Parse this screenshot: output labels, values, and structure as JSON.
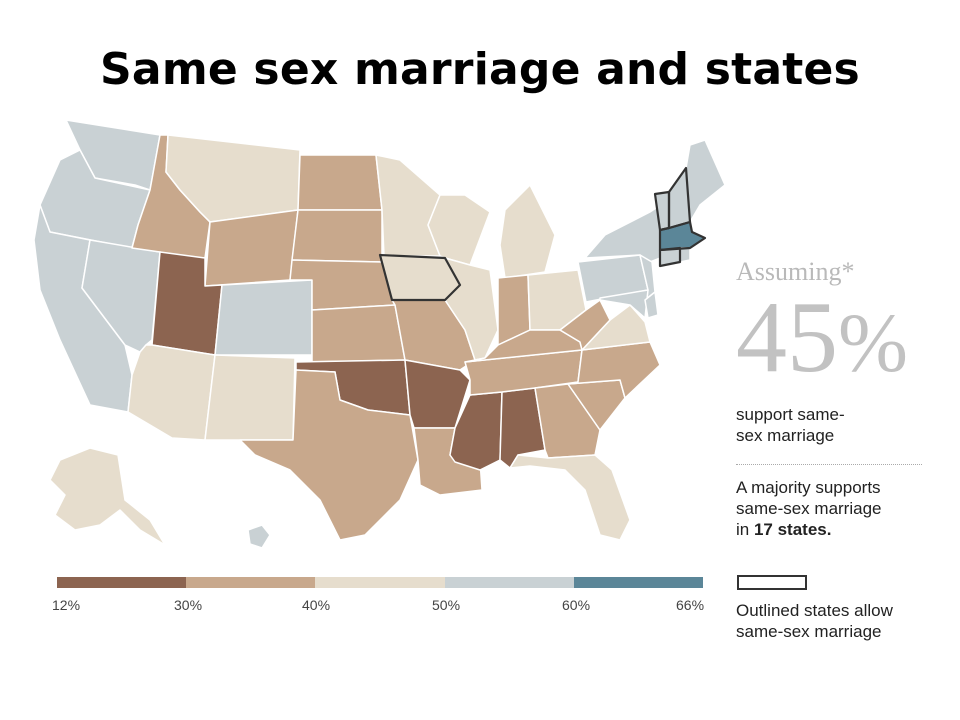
{
  "title": "Same sex marriage and states",
  "colors": {
    "lt30": "#8c6450",
    "30to40": "#c8a88c",
    "40to50": "#e6ddcd",
    "50to60": "#c9d1d4",
    "60plus": "#5b8698",
    "outline": "#333333",
    "border": "#ffffff"
  },
  "legend": {
    "ticks": [
      "12%",
      "30%",
      "40%",
      "50%",
      "60%",
      "66%"
    ],
    "bins": [
      "lt30",
      "30to40",
      "40to50",
      "50to60",
      "60plus"
    ]
  },
  "side": {
    "assuming": "Assuming*",
    "big_number": "45",
    "big_unit": "%",
    "support_line1": "support same-",
    "support_line2": "sex marriage",
    "majority_line1": "A majority supports",
    "majority_line2": "same-sex marriage",
    "majority_prefix": "in ",
    "majority_bold": "17 states.",
    "outline_line1": "Outlined states allow",
    "outline_line2": "same-sex marriage"
  },
  "states": {
    "WA": "50to60",
    "OR": "50to60",
    "CA": "50to60",
    "NV": "50to60",
    "CO": "50to60",
    "NY": "50to60",
    "PA": "50to60",
    "NJ": "50to60",
    "DE": "50to60",
    "MD": "50to60",
    "ME": "50to60",
    "NH": "50to60",
    "VT": "50to60",
    "CT": "50to60",
    "RI": "50to60",
    "HI": "50to60",
    "MA": "60plus",
    "UT": "lt30",
    "OK": "lt30",
    "AR": "lt30",
    "MS": "lt30",
    "AL": "lt30",
    "ID": "30to40",
    "WY": "30to40",
    "ND": "30to40",
    "SD": "30to40",
    "NE": "30to40",
    "KS": "30to40",
    "MO": "30to40",
    "TX": "30to40",
    "LA": "30to40",
    "TN": "30to40",
    "KY": "30to40",
    "IN": "30to40",
    "GA": "30to40",
    "SC": "30to40",
    "NC": "30to40",
    "WV": "30to40",
    "MT": "40to50",
    "MN": "40to50",
    "IA": "40to50",
    "WI": "40to50",
    "IL": "40to50",
    "MI": "40to50",
    "OH": "40to50",
    "VA": "40to50",
    "FL": "40to50",
    "AZ": "40to50",
    "NM": "40to50",
    "AK": "40to50"
  },
  "outlined_states": [
    "IA",
    "VT",
    "NH",
    "MA",
    "CT"
  ]
}
